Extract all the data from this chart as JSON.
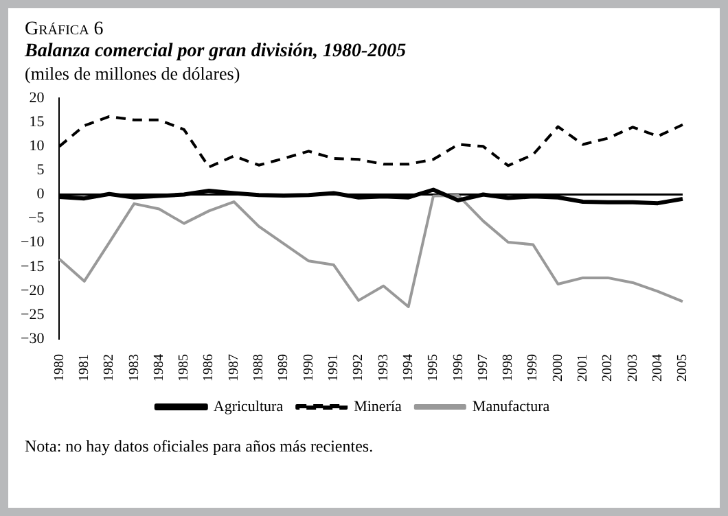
{
  "chart_data": {
    "type": "line",
    "title": "Gráfica 6",
    "subtitle": "Balanza comercial por gran división, 1980-2005",
    "ylabel": "(miles de millones de dólares)",
    "categories": [
      "1980",
      "1981",
      "1982",
      "1983",
      "1984",
      "1985",
      "1986",
      "1987",
      "1988",
      "1989",
      "1990",
      "1991",
      "1992",
      "1993",
      "1994",
      "1995",
      "1996",
      "1997",
      "1998",
      "1999",
      "2000",
      "2001",
      "2002",
      "2003",
      "2004",
      "2005"
    ],
    "series": [
      {
        "name": "Agricultura",
        "color": "#000000",
        "line_style": "solid",
        "values": [
          -0.5,
          -0.8,
          0.1,
          -0.6,
          -0.3,
          0,
          0.8,
          0.3,
          -0.1,
          -0.2,
          -0.1,
          0.3,
          -0.6,
          -0.4,
          -0.6,
          1.0,
          -1.2,
          0,
          -0.7,
          -0.4,
          -0.6,
          -1.5,
          -1.6,
          -1.6,
          -1.8,
          -0.9
        ]
      },
      {
        "name": "Minería",
        "color": "#000000",
        "line_style": "dashed",
        "values": [
          10,
          14.3,
          16.2,
          15.5,
          15.5,
          13.5,
          5.7,
          8,
          6.1,
          7.5,
          9,
          7.5,
          7.3,
          6.3,
          6.3,
          7.3,
          10.4,
          10,
          6,
          8.3,
          14.1,
          10.4,
          11.7,
          14,
          12.1,
          14.5
        ]
      },
      {
        "name": "Manufactura",
        "color": "#999999",
        "line_style": "solid",
        "values": [
          -13.4,
          -18,
          -10,
          -1.9,
          -3,
          -6,
          -3.4,
          -1.5,
          -6.6,
          -10.2,
          -13.8,
          -14.6,
          -22,
          -19,
          -23.3,
          -0.3,
          -0.2,
          -5.5,
          -9.9,
          -10.4,
          -18.6,
          -17.3,
          -17.3,
          -18.3,
          -20.1,
          -22.2
        ]
      }
    ],
    "ref_lines": [
      {
        "axis": "y",
        "value": 0,
        "color": "#000000"
      }
    ],
    "ylim": [
      -30,
      20
    ],
    "yticks": [
      -30,
      -25,
      -20,
      -15,
      -10,
      -5,
      0,
      5,
      10,
      15,
      20
    ],
    "grid": false,
    "legend": "bottom",
    "marker": "none",
    "annotations": [
      "Nota: no hay datos oficiales para años más recientes."
    ]
  }
}
